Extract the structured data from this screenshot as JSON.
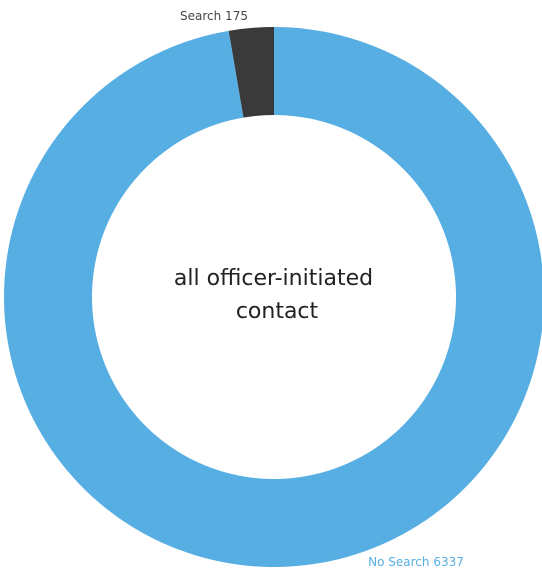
{
  "chart_data": {
    "type": "pie",
    "title": "",
    "center_label": [
      "all officer-initiated",
      "contact"
    ],
    "slices": [
      {
        "label": "Search",
        "value": 175,
        "display": "Search 175",
        "color": "#3a3a3a",
        "label_color": "#444444"
      },
      {
        "label": "No Search",
        "value": 6337,
        "display": "No Search 6337",
        "color": "#56aee3",
        "label_color": "#56aee3"
      }
    ],
    "donut": true,
    "legend": "none"
  }
}
